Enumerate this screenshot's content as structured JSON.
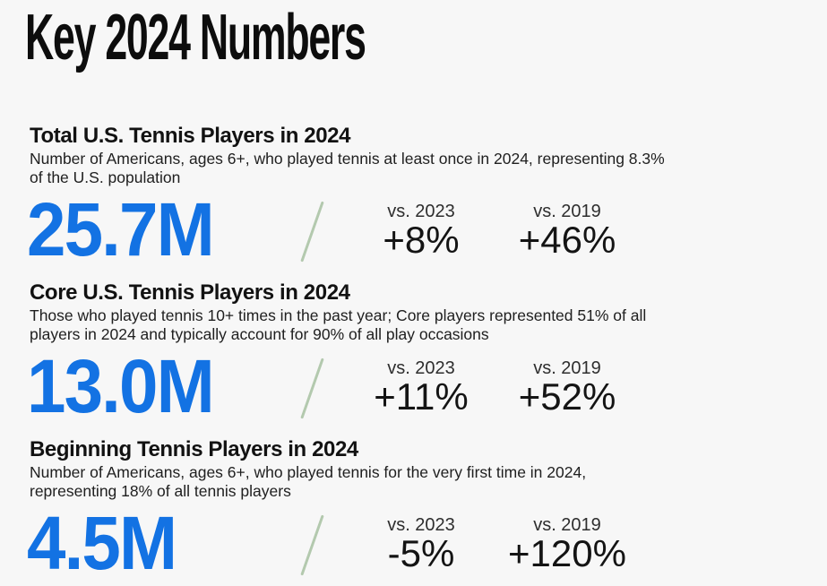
{
  "theme": {
    "background": "#f7f7f7",
    "accent_blue": "#1372e3",
    "slash_green": "#b3c9ae",
    "text_body": "#202020"
  },
  "title": "Key 2024 Numbers",
  "sections": [
    {
      "heading": "Total U.S. Tennis Players in 2024",
      "desc_lines": [
        "Number of Americans, ages 6+, who played tennis at least once in 2024, representing 8.3%",
        "of the U.S. population"
      ],
      "value": "25.7M",
      "comparisons": [
        {
          "label": "vs. 2023",
          "value": "+8%"
        },
        {
          "label": "vs. 2019",
          "value": "+46%"
        }
      ]
    },
    {
      "heading": "Core U.S. Tennis Players in 2024",
      "desc_lines": [
        "Those who played tennis 10+ times in the past year; Core players represented 51% of all",
        "players in 2024 and typically account for 90% of all play occasions"
      ],
      "value": "13.0M",
      "comparisons": [
        {
          "label": "vs. 2023",
          "value": "+11%"
        },
        {
          "label": "vs. 2019",
          "value": "+52%"
        }
      ]
    },
    {
      "heading": "Beginning Tennis Players in 2024",
      "desc_lines": [
        "Number of Americans, ages 6+, who played tennis for the very first time in 2024,",
        "representing 18% of all tennis players"
      ],
      "value": "4.5M",
      "comparisons": [
        {
          "label": "vs. 2023",
          "value": "-5%"
        },
        {
          "label": "vs. 2019",
          "value": "+120%"
        }
      ]
    }
  ]
}
